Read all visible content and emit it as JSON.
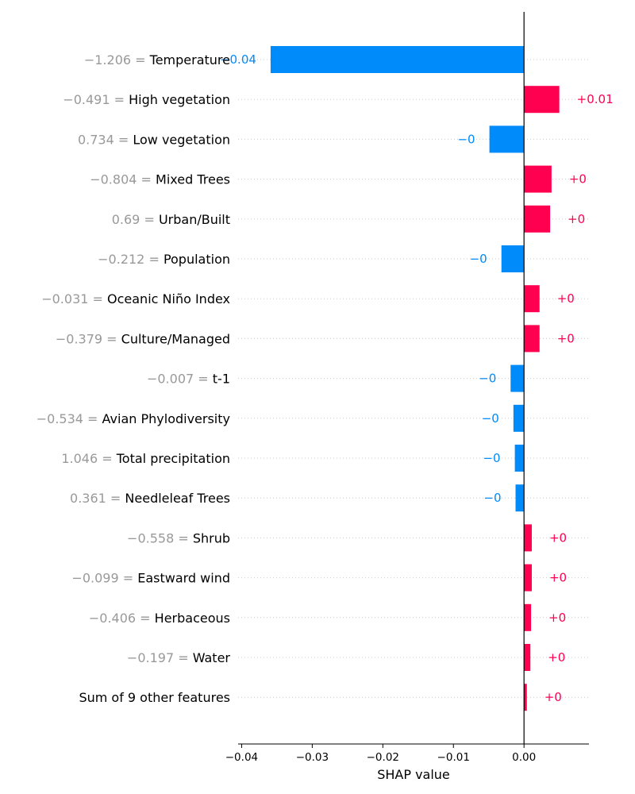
{
  "chart_data": {
    "type": "bar",
    "orientation": "horizontal",
    "plot_kind": "shap-waterfall-style bar",
    "xlabel": "SHAP value",
    "xlim": [
      -0.0405,
      0.0092
    ],
    "xticks": [
      -0.04,
      -0.03,
      -0.02,
      -0.01,
      0.0
    ],
    "xtick_labels": [
      "−0.04",
      "−0.03",
      "−0.02",
      "−0.01",
      "0.00"
    ],
    "grid": "dotted horizontal row guides",
    "colors": {
      "positive": "#ff0051",
      "negative": "#008bfb",
      "feature_value": "#999999",
      "zero_line": "#000000"
    },
    "rows": [
      {
        "feature_value": "−1.206 = ",
        "feature": "Temperature",
        "value": -0.0359,
        "label": "−0.04"
      },
      {
        "feature_value": "−0.491 = ",
        "feature": "High vegetation",
        "value": 0.005,
        "label": "+0.01"
      },
      {
        "feature_value": "0.734 = ",
        "feature": "Low vegetation",
        "value": -0.0049,
        "label": "−0"
      },
      {
        "feature_value": "−0.804 = ",
        "feature": "Mixed Trees",
        "value": 0.0039,
        "label": "+0"
      },
      {
        "feature_value": "0.69 = ",
        "feature": "Urban/Built",
        "value": 0.0037,
        "label": "+0"
      },
      {
        "feature_value": "−0.212 = ",
        "feature": "Population",
        "value": -0.0032,
        "label": "−0"
      },
      {
        "feature_value": "−0.031 = ",
        "feature": "Oceanic Niño Index",
        "value": 0.0022,
        "label": "+0"
      },
      {
        "feature_value": "−0.379 = ",
        "feature": "Culture/Managed",
        "value": 0.0022,
        "label": "+0"
      },
      {
        "feature_value": "−0.007 = ",
        "feature": "t-1",
        "value": -0.0019,
        "label": "−0"
      },
      {
        "feature_value": "−0.534 = ",
        "feature": "Avian Phylodiversity",
        "value": -0.0015,
        "label": "−0"
      },
      {
        "feature_value": "1.046 = ",
        "feature": "Total precipitation",
        "value": -0.0013,
        "label": "−0"
      },
      {
        "feature_value": "0.361 = ",
        "feature": "Needleleaf Trees",
        "value": -0.0012,
        "label": "−0"
      },
      {
        "feature_value": "−0.558 = ",
        "feature": "Shrub",
        "value": 0.0011,
        "label": "+0"
      },
      {
        "feature_value": "−0.099 = ",
        "feature": "Eastward wind",
        "value": 0.0011,
        "label": "+0"
      },
      {
        "feature_value": "−0.406 = ",
        "feature": "Herbaceous",
        "value": 0.001,
        "label": "+0"
      },
      {
        "feature_value": "−0.197 = ",
        "feature": "Water",
        "value": 0.0009,
        "label": "+0"
      },
      {
        "feature_value": "",
        "feature": "Sum of 9 other features",
        "value": 0.0004,
        "label": "+0"
      }
    ]
  }
}
